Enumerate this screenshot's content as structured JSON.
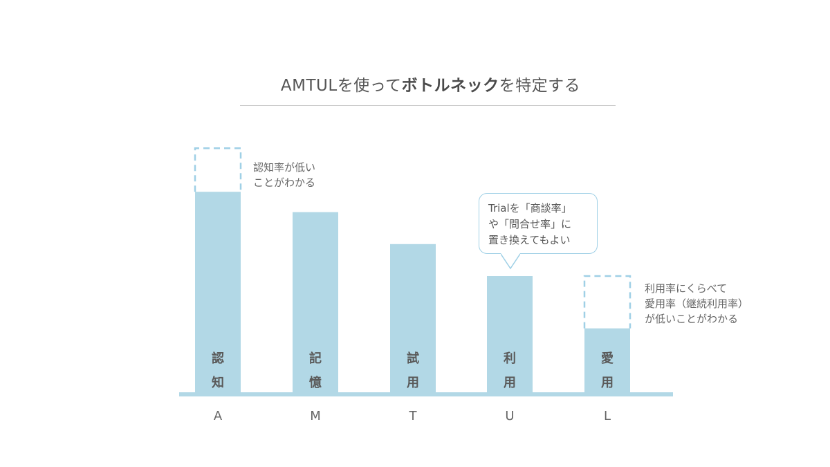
{
  "title": {
    "prefix": "AMTULを使って",
    "emphasis": "ボトルネック",
    "suffix": "を特定する"
  },
  "colors": {
    "bar": "#b2d8e6",
    "dashed": "#9fd0e6",
    "baseline": "#b2d8e6",
    "label": "#666666",
    "barText": "#5a5a5a"
  },
  "chart_data": {
    "type": "bar",
    "categories": [
      "A",
      "M",
      "T",
      "U",
      "L"
    ],
    "bar_labels": [
      "認\n知",
      "記\n憶",
      "試\n用",
      "利\n用",
      "愛\n用"
    ],
    "values": [
      69,
      62,
      51,
      40,
      22
    ],
    "ideal_values": [
      84,
      null,
      null,
      null,
      40
    ],
    "ylim": [
      0,
      100
    ],
    "grid": false
  },
  "annotations": {
    "awareness_note": "認知率が低い\nことがわかる",
    "trial_callout": "Trialを「商談率」\nや「問合せ率」に\n置き換えてもよい",
    "loyalty_note": "利用率にくらべて\n愛用率（継続利用率）\nが低いことがわかる"
  }
}
